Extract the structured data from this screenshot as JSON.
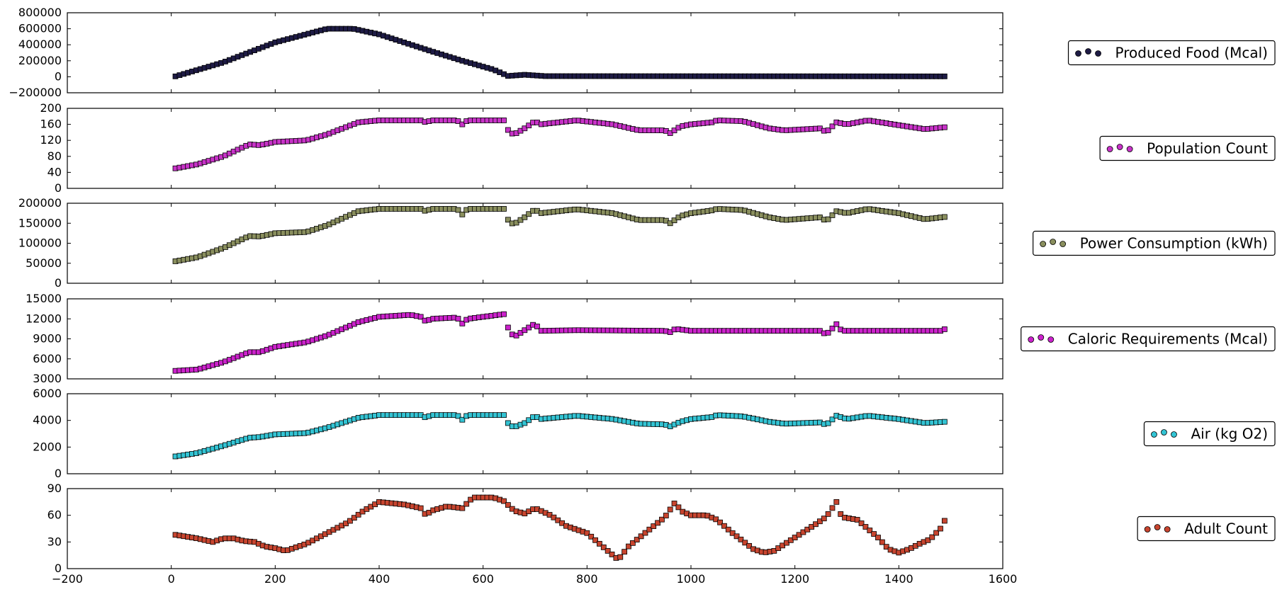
{
  "figure": {
    "background": "#ffffff"
  },
  "chart_data": [
    {
      "type": "scatter",
      "name": "Produced Food (Mcal)",
      "color": "#1e1b45",
      "marker": "square",
      "ylim": [
        -200000,
        800000
      ],
      "yticks": [
        -200000,
        0,
        200000,
        400000,
        600000,
        800000
      ],
      "ytick_labels": [
        "−200000",
        "0",
        "200000",
        "400000",
        "600000",
        "800000"
      ],
      "legend": {
        "label": "Produced Food (Mcal)",
        "placement": "right"
      },
      "anchors": [
        [
          8,
          5000
        ],
        [
          100,
          180000
        ],
        [
          200,
          430000
        ],
        [
          300,
          600000
        ],
        [
          350,
          600000
        ],
        [
          400,
          530000
        ],
        [
          500,
          320000
        ],
        [
          560,
          200000
        ],
        [
          620,
          90000
        ],
        [
          648,
          10000
        ],
        [
          680,
          25000
        ],
        [
          720,
          8000
        ],
        [
          1490,
          5000
        ]
      ]
    },
    {
      "type": "scatter",
      "name": "Population Count",
      "color": "#c832c8",
      "marker": "square",
      "ylim": [
        0,
        200
      ],
      "yticks": [
        0,
        40,
        80,
        120,
        160,
        200
      ],
      "ytick_labels": [
        "0",
        "40",
        "80",
        "120",
        "160",
        "200"
      ],
      "legend": {
        "label": "Population Count",
        "placement": "right"
      },
      "anchors": [
        [
          8,
          50
        ],
        [
          50,
          60
        ],
        [
          100,
          80
        ],
        [
          150,
          110
        ],
        [
          170,
          108
        ],
        [
          200,
          116
        ],
        [
          260,
          120
        ],
        [
          300,
          135
        ],
        [
          360,
          165
        ],
        [
          400,
          170
        ],
        [
          480,
          170
        ],
        [
          490,
          165
        ],
        [
          500,
          170
        ],
        [
          550,
          170
        ],
        [
          560,
          160
        ],
        [
          570,
          170
        ],
        [
          640,
          170
        ],
        [
          650,
          140
        ],
        [
          660,
          135
        ],
        [
          680,
          150
        ],
        [
          700,
          168
        ],
        [
          710,
          160
        ],
        [
          780,
          170
        ],
        [
          850,
          160
        ],
        [
          900,
          145
        ],
        [
          950,
          145
        ],
        [
          960,
          138
        ],
        [
          980,
          155
        ],
        [
          1000,
          160
        ],
        [
          1040,
          165
        ],
        [
          1050,
          170
        ],
        [
          1100,
          168
        ],
        [
          1150,
          150
        ],
        [
          1180,
          145
        ],
        [
          1250,
          150
        ],
        [
          1260,
          140
        ],
        [
          1280,
          165
        ],
        [
          1300,
          160
        ],
        [
          1340,
          170
        ],
        [
          1400,
          158
        ],
        [
          1450,
          148
        ],
        [
          1490,
          153
        ]
      ]
    },
    {
      "type": "scatter",
      "name": "Power Consumption (kWh)",
      "color": "#8a8f5e",
      "marker": "square",
      "ylim": [
        0,
        200000
      ],
      "yticks": [
        0,
        50000,
        100000,
        150000,
        200000
      ],
      "ytick_labels": [
        "0",
        "50000",
        "100000",
        "150000",
        "200000"
      ],
      "legend": {
        "label": "Power Consumption (kWh)",
        "placement": "right"
      },
      "anchors": [
        [
          8,
          55000
        ],
        [
          50,
          65000
        ],
        [
          100,
          88000
        ],
        [
          150,
          118000
        ],
        [
          170,
          117000
        ],
        [
          200,
          125000
        ],
        [
          260,
          128000
        ],
        [
          300,
          145000
        ],
        [
          360,
          180000
        ],
        [
          400,
          186000
        ],
        [
          480,
          186000
        ],
        [
          490,
          180000
        ],
        [
          500,
          186000
        ],
        [
          550,
          186000
        ],
        [
          560,
          172000
        ],
        [
          570,
          186000
        ],
        [
          640,
          186000
        ],
        [
          650,
          152000
        ],
        [
          660,
          148000
        ],
        [
          680,
          165000
        ],
        [
          700,
          185000
        ],
        [
          710,
          175000
        ],
        [
          780,
          185000
        ],
        [
          850,
          175000
        ],
        [
          900,
          158000
        ],
        [
          950,
          158000
        ],
        [
          960,
          150000
        ],
        [
          980,
          168000
        ],
        [
          1000,
          175000
        ],
        [
          1040,
          182000
        ],
        [
          1050,
          186000
        ],
        [
          1100,
          183000
        ],
        [
          1150,
          165000
        ],
        [
          1180,
          158000
        ],
        [
          1250,
          165000
        ],
        [
          1260,
          155000
        ],
        [
          1280,
          180000
        ],
        [
          1300,
          175000
        ],
        [
          1340,
          186000
        ],
        [
          1400,
          175000
        ],
        [
          1450,
          160000
        ],
        [
          1490,
          166000
        ]
      ]
    },
    {
      "type": "scatter",
      "name": "Caloric Requirements (Mcal)",
      "color": "#cc22cc",
      "marker": "square",
      "ylim": [
        3000,
        15000
      ],
      "yticks": [
        3000,
        6000,
        9000,
        12000,
        15000
      ],
      "ytick_labels": [
        "3000",
        "6000",
        "9000",
        "12000",
        "15000"
      ],
      "legend": {
        "label": "Caloric Requirements (Mcal)",
        "placement": "right"
      },
      "anchors": [
        [
          8,
          4200
        ],
        [
          50,
          4400
        ],
        [
          100,
          5500
        ],
        [
          150,
          7000
        ],
        [
          170,
          7000
        ],
        [
          200,
          7800
        ],
        [
          260,
          8500
        ],
        [
          300,
          9500
        ],
        [
          360,
          11500
        ],
        [
          400,
          12300
        ],
        [
          460,
          12600
        ],
        [
          480,
          12300
        ],
        [
          490,
          11600
        ],
        [
          500,
          12000
        ],
        [
          550,
          12200
        ],
        [
          560,
          11300
        ],
        [
          570,
          12000
        ],
        [
          640,
          12700
        ],
        [
          650,
          10200
        ],
        [
          660,
          9300
        ],
        [
          680,
          10300
        ],
        [
          700,
          11300
        ],
        [
          710,
          10200
        ],
        [
          780,
          10300
        ],
        [
          950,
          10200
        ],
        [
          960,
          10000
        ],
        [
          970,
          10500
        ],
        [
          1000,
          10200
        ],
        [
          1250,
          10200
        ],
        [
          1260,
          9600
        ],
        [
          1280,
          11200
        ],
        [
          1290,
          10200
        ],
        [
          1480,
          10200
        ],
        [
          1490,
          10500
        ]
      ]
    },
    {
      "type": "scatter",
      "name": "Air (kg O2)",
      "color": "#33c4d4",
      "marker": "square",
      "ylim": [
        0,
        6000
      ],
      "yticks": [
        0,
        2000,
        4000,
        6000
      ],
      "ytick_labels": [
        "0",
        "2000",
        "4000",
        "6000"
      ],
      "legend": {
        "label": "Air (kg O2)",
        "placement": "right"
      },
      "anchors": [
        [
          8,
          1300
        ],
        [
          50,
          1550
        ],
        [
          100,
          2100
        ],
        [
          150,
          2700
        ],
        [
          170,
          2750
        ],
        [
          200,
          2950
        ],
        [
          260,
          3050
        ],
        [
          300,
          3450
        ],
        [
          360,
          4200
        ],
        [
          400,
          4400
        ],
        [
          480,
          4400
        ],
        [
          490,
          4200
        ],
        [
          500,
          4400
        ],
        [
          550,
          4400
        ],
        [
          560,
          4050
        ],
        [
          570,
          4400
        ],
        [
          640,
          4400
        ],
        [
          650,
          3650
        ],
        [
          660,
          3500
        ],
        [
          680,
          3800
        ],
        [
          700,
          4350
        ],
        [
          710,
          4100
        ],
        [
          780,
          4350
        ],
        [
          850,
          4100
        ],
        [
          900,
          3750
        ],
        [
          950,
          3700
        ],
        [
          960,
          3550
        ],
        [
          980,
          3900
        ],
        [
          1000,
          4100
        ],
        [
          1040,
          4250
        ],
        [
          1050,
          4400
        ],
        [
          1100,
          4300
        ],
        [
          1150,
          3900
        ],
        [
          1180,
          3750
        ],
        [
          1250,
          3850
        ],
        [
          1260,
          3650
        ],
        [
          1280,
          4350
        ],
        [
          1300,
          4100
        ],
        [
          1340,
          4350
        ],
        [
          1400,
          4100
        ],
        [
          1450,
          3800
        ],
        [
          1490,
          3900
        ]
      ]
    },
    {
      "type": "scatter",
      "name": "Adult Count",
      "color": "#c8452f",
      "marker": "square",
      "ylim": [
        0,
        90
      ],
      "yticks": [
        0,
        30,
        60,
        90
      ],
      "ytick_labels": [
        "0",
        "30",
        "60",
        "90"
      ],
      "legend": {
        "label": "Adult Count",
        "placement": "right"
      },
      "xlim": [
        -200,
        1600
      ],
      "xticks": [
        -200,
        0,
        200,
        400,
        600,
        800,
        1000,
        1200,
        1400,
        1600
      ],
      "xtick_labels": [
        "−200",
        "0",
        "200",
        "400",
        "600",
        "800",
        "1000",
        "1200",
        "1400",
        "1600"
      ],
      "anchors": [
        [
          8,
          38
        ],
        [
          50,
          34
        ],
        [
          80,
          30
        ],
        [
          100,
          34
        ],
        [
          120,
          34
        ],
        [
          140,
          31
        ],
        [
          160,
          30
        ],
        [
          180,
          25
        ],
        [
          200,
          23
        ],
        [
          220,
          20
        ],
        [
          260,
          28
        ],
        [
          300,
          40
        ],
        [
          340,
          52
        ],
        [
          370,
          65
        ],
        [
          400,
          75
        ],
        [
          450,
          72
        ],
        [
          480,
          68
        ],
        [
          490,
          60
        ],
        [
          500,
          65
        ],
        [
          530,
          70
        ],
        [
          560,
          68
        ],
        [
          580,
          80
        ],
        [
          620,
          80
        ],
        [
          640,
          76
        ],
        [
          660,
          65
        ],
        [
          680,
          62
        ],
        [
          700,
          68
        ],
        [
          730,
          60
        ],
        [
          760,
          48
        ],
        [
          800,
          40
        ],
        [
          840,
          20
        ],
        [
          860,
          10
        ],
        [
          880,
          25
        ],
        [
          920,
          44
        ],
        [
          950,
          58
        ],
        [
          970,
          75
        ],
        [
          980,
          65
        ],
        [
          1000,
          60
        ],
        [
          1030,
          60
        ],
        [
          1050,
          55
        ],
        [
          1080,
          40
        ],
        [
          1120,
          22
        ],
        [
          1140,
          18
        ],
        [
          1160,
          20
        ],
        [
          1200,
          35
        ],
        [
          1240,
          50
        ],
        [
          1260,
          58
        ],
        [
          1280,
          75
        ],
        [
          1290,
          58
        ],
        [
          1320,
          55
        ],
        [
          1360,
          35
        ],
        [
          1380,
          22
        ],
        [
          1400,
          18
        ],
        [
          1420,
          22
        ],
        [
          1440,
          28
        ],
        [
          1460,
          33
        ],
        [
          1480,
          45
        ],
        [
          1490,
          56
        ]
      ]
    }
  ],
  "x_sampling": {
    "start": 8,
    "end": 1490,
    "step": 8
  }
}
